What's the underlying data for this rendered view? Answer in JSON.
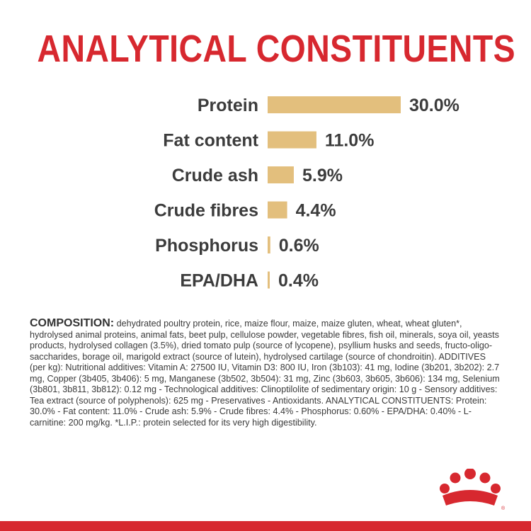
{
  "title": "ANALYTICAL CONSTITUENTS",
  "chart_data": {
    "type": "bar",
    "orientation": "horizontal",
    "categories": [
      "Protein",
      "Fat content",
      "Crude ash",
      "Crude fibres",
      "Phosphorus",
      "EPA/DHA"
    ],
    "values": [
      30.0,
      11.0,
      5.9,
      4.4,
      0.6,
      0.4
    ],
    "value_labels": [
      "30.0%",
      "11.0%",
      "5.9%",
      "4.4%",
      "0.6%",
      "0.4%"
    ],
    "bar_color": "#e3bf7d",
    "grid": false
  },
  "composition": {
    "heading": "COMPOSITION:",
    "text": " dehydrated poultry protein, rice, maize flour, maize, maize gluten, wheat, wheat gluten*, hydrolysed animal proteins, animal fats, beet pulp, cellulose powder, vegetable fibres, fish oil, minerals, soya oil, yeasts products, hydrolysed collagen (3.5%), dried tomato pulp (source of lycopene), psyllium husks and seeds, fructo-oligo-saccharides, borage oil, marigold extract (source of lutein), hydrolysed cartilage (source of chondroitin). ADDITIVES (per kg): Nutritional additives: Vitamin A: 27500 IU, Vitamin D3: 800 IU, Iron (3b103): 41 mg, Iodine (3b201, 3b202): 2.7 mg, Copper (3b405, 3b406): 5 mg, Manganese (3b502, 3b504): 31 mg, Zinc (3b603, 3b605, 3b606): 134 mg, Selenium (3b801, 3b811, 3b812): 0.12 mg - Technological additives: Clinoptilolite of sedimentary origin: 10 g - Sensory additives: Tea extract (source of polyphenols): 625 mg - Preservatives - Antioxidants. ANALYTICAL CONSTITUENTS: Protein: 30.0% - Fat content: 11.0% - Crude ash: 5.9% - Crude fibres: 4.4% - Phosphorus: 0.60% - EPA/DHA: 0.40% - L-carnitine: 200 mg/kg. *L.I.P.: protein selected for its very high digestibility."
  },
  "colors": {
    "accent": "#d7282f",
    "bar": "#e3bf7d",
    "text": "#3c3c3c"
  },
  "logo": {
    "icon": "crown-logo-icon"
  }
}
